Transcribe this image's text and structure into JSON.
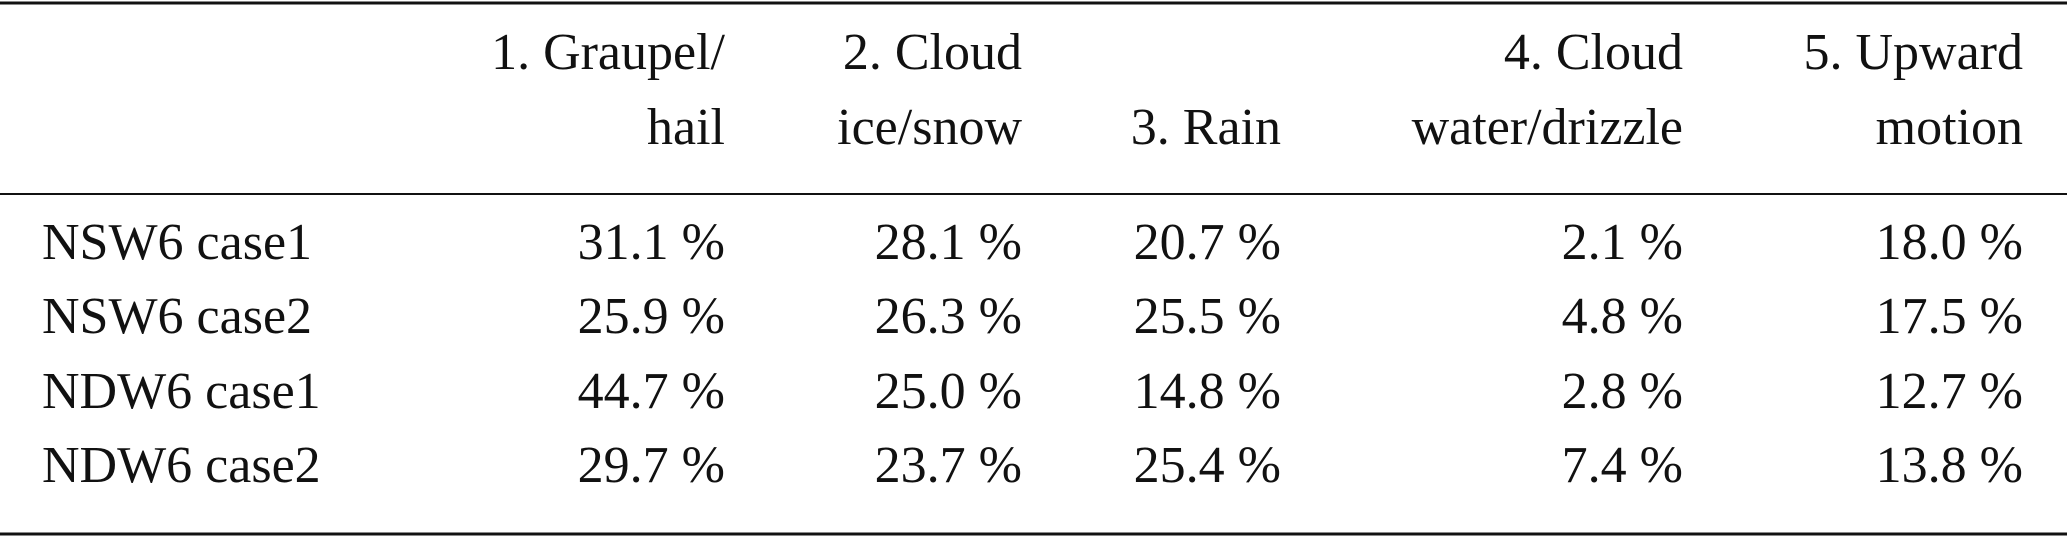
{
  "table": {
    "header": [
      [
        "1. Graupel/",
        "hail"
      ],
      [
        "2. Cloud",
        "ice/snow"
      ],
      [
        "3. Rain"
      ],
      [
        "4. Cloud",
        "water/drizzle"
      ],
      [
        "5. Upward",
        "motion"
      ]
    ],
    "rows": [
      [
        "NSW6 case1",
        "31.1 %",
        "28.1 %",
        "20.7 %",
        "2.1 %",
        "18.0 %"
      ],
      [
        "NSW6 case2",
        "25.9 %",
        "26.3 %",
        "25.5 %",
        "4.8 %",
        "17.5 %"
      ],
      [
        "NDW6 case1",
        "44.7 %",
        "25.0 %",
        "14.8 %",
        "2.8 %",
        "12.7 %"
      ],
      [
        "NDW6 case2",
        "29.7 %",
        "23.7 %",
        "25.4 %",
        "7.4 %",
        "13.8 %"
      ]
    ]
  }
}
